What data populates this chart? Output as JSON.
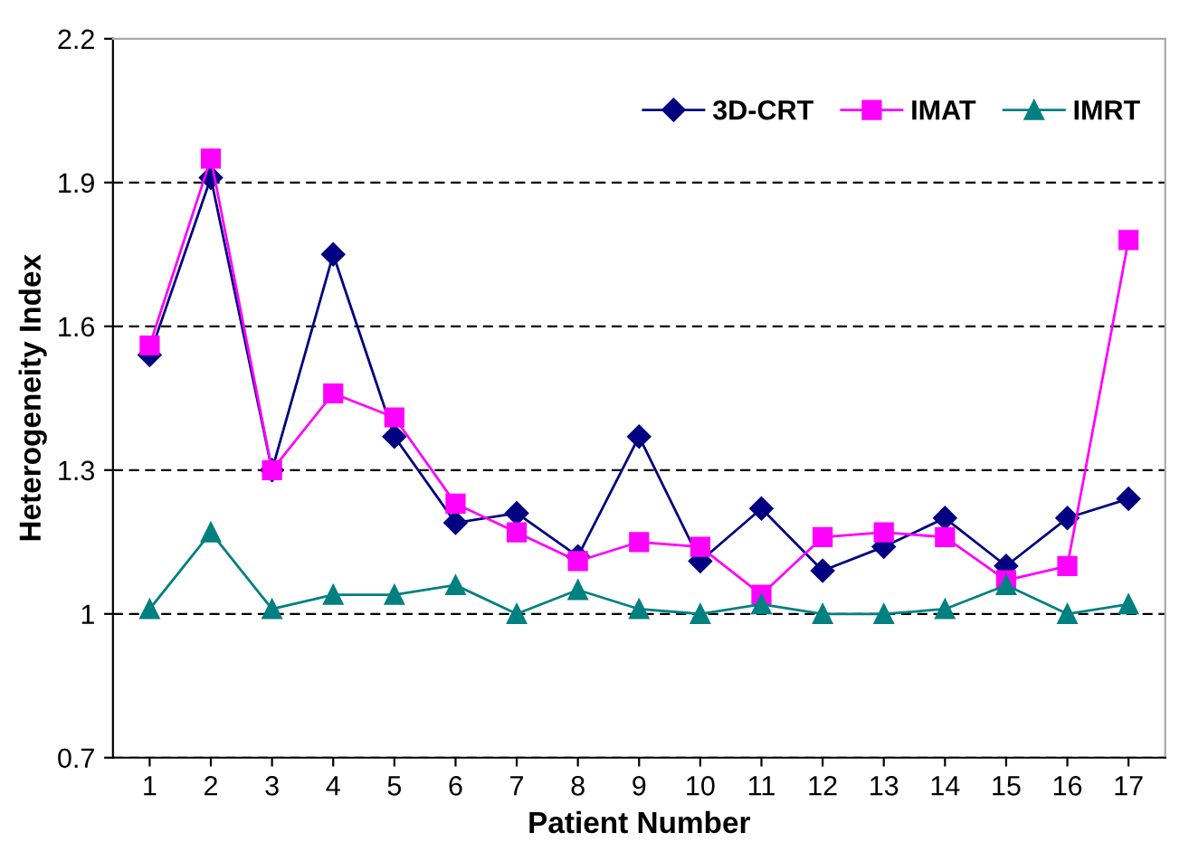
{
  "chart_data": {
    "type": "line",
    "xlabel": "Patient Number",
    "ylabel": "Heterogeneity Index",
    "categories": [
      "1",
      "2",
      "3",
      "4",
      "5",
      "6",
      "7",
      "8",
      "9",
      "10",
      "11",
      "12",
      "13",
      "14",
      "15",
      "16",
      "17"
    ],
    "series": [
      {
        "name": "3D-CRT",
        "color": "#000080",
        "marker": "diamond",
        "values": [
          1.54,
          1.91,
          1.3,
          1.75,
          1.37,
          1.19,
          1.21,
          1.12,
          1.37,
          1.11,
          1.22,
          1.09,
          1.14,
          1.2,
          1.1,
          1.2,
          1.24
        ]
      },
      {
        "name": "IMAT",
        "color": "#ff00ff",
        "marker": "square",
        "values": [
          1.56,
          1.95,
          1.3,
          1.46,
          1.41,
          1.23,
          1.17,
          1.11,
          1.15,
          1.14,
          1.04,
          1.16,
          1.17,
          1.16,
          1.07,
          1.1,
          1.78
        ]
      },
      {
        "name": "IMRT",
        "color": "#008080",
        "marker": "triangle",
        "values": [
          1.01,
          1.17,
          1.01,
          1.04,
          1.04,
          1.06,
          1.0,
          1.05,
          1.01,
          1.0,
          1.02,
          1.0,
          1.0,
          1.01,
          1.06,
          1.0,
          1.02
        ]
      }
    ],
    "ylim": [
      0.7,
      2.2
    ],
    "yticks": [
      0.7,
      1,
      1.3,
      1.6,
      1.9,
      2.2
    ],
    "grid": "y",
    "legend": "top right",
    "line_style": "solid"
  }
}
